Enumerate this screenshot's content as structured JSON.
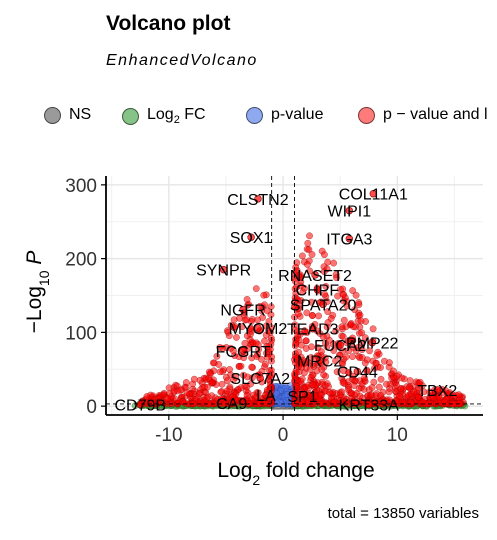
{
  "chart_data": {
    "type": "scatter",
    "title": "Volcano plot",
    "subtitle": "EnhancedVolcano",
    "xlabel_main": "Log",
    "xlabel_sub": "2",
    "xlabel_rest": " fold change",
    "ylabel_pre": "−Log",
    "ylabel_sub": "10",
    "ylabel_var": " P",
    "xlim": [
      -15.5,
      17.5
    ],
    "ylim": [
      -12,
      312
    ],
    "x_ticks": [
      -10,
      0,
      10
    ],
    "x_tick_labels": [
      "-10",
      "0",
      "10"
    ],
    "y_ticks": [
      0,
      100,
      200,
      300
    ],
    "y_tick_labels": [
      "0",
      "100",
      "200",
      "300"
    ],
    "grid": true,
    "fc_cutoff": 1,
    "p_cutoff_log10": 3,
    "legend_position": "top",
    "legend": [
      {
        "key": "NS",
        "label": "NS",
        "color": "#808080"
      },
      {
        "key": "fc",
        "label_main": "Log",
        "label_sub": "2",
        "label_rest": " FC",
        "color": "#3a9a3a"
      },
      {
        "key": "p",
        "label": "p-value",
        "color": "#4169e1"
      },
      {
        "key": "both",
        "label": "p − value and l",
        "color": "#ff0000"
      }
    ],
    "caption": "total = 13850 variables",
    "labeled_points": [
      {
        "label": "COL11A1",
        "x": 7.9,
        "y": 288
      },
      {
        "label": "CLSTN2",
        "x": -2.2,
        "y": 281
      },
      {
        "label": "WIPI1",
        "x": 5.8,
        "y": 265
      },
      {
        "label": "ITGA3",
        "x": 5.8,
        "y": 227
      },
      {
        "label": "SOX1",
        "x": -2.8,
        "y": 229
      },
      {
        "label": "SYNPR",
        "x": -5.2,
        "y": 185
      },
      {
        "label": "RNASET2",
        "x": 2.8,
        "y": 178
      },
      {
        "label": "CHPF",
        "x": 3.0,
        "y": 158
      },
      {
        "label": "SPATA20",
        "x": 3.5,
        "y": 138
      },
      {
        "label": "NGFR",
        "x": -3.5,
        "y": 131
      },
      {
        "label": "TEAD3",
        "x": 2.6,
        "y": 105
      },
      {
        "label": "MYOM2",
        "x": -2.2,
        "y": 106
      },
      {
        "label": "PMP22",
        "x": 7.8,
        "y": 86
      },
      {
        "label": "FUCA2",
        "x": 5.0,
        "y": 83
      },
      {
        "label": "FCGRT",
        "x": -3.5,
        "y": 75
      },
      {
        "label": "MRC2",
        "x": 3.2,
        "y": 62
      },
      {
        "label": "CD44",
        "x": 6.5,
        "y": 47
      },
      {
        "label": "SLC7A2",
        "x": -2.0,
        "y": 38
      },
      {
        "label": "TBX2",
        "x": 13.5,
        "y": 22
      },
      {
        "label": "SP1",
        "x": 1.7,
        "y": 14
      },
      {
        "label": "CD79B",
        "x": -12.5,
        "y": 2
      },
      {
        "label": "CA9",
        "x": -4.5,
        "y": 4
      },
      {
        "label": "KRT33A",
        "x": 7.5,
        "y": 2
      },
      {
        "label": "LA",
        "x": -1.5,
        "y": 15
      }
    ],
    "point_clouds": [
      {
        "category": "NS",
        "n": 420,
        "x_range": [
          -1,
          1
        ],
        "y_range": [
          0,
          3
        ]
      },
      {
        "category": "fc",
        "n": 500,
        "x_range": [
          -13,
          16
        ],
        "y_range": [
          0,
          3
        ]
      },
      {
        "category": "p",
        "n": 140,
        "x_range": [
          -1,
          1
        ],
        "y_range": [
          3,
          28
        ]
      },
      {
        "category": "both",
        "n": 1100,
        "x_range": [
          -12,
          16
        ],
        "y_range": [
          3,
          300
        ]
      }
    ]
  }
}
